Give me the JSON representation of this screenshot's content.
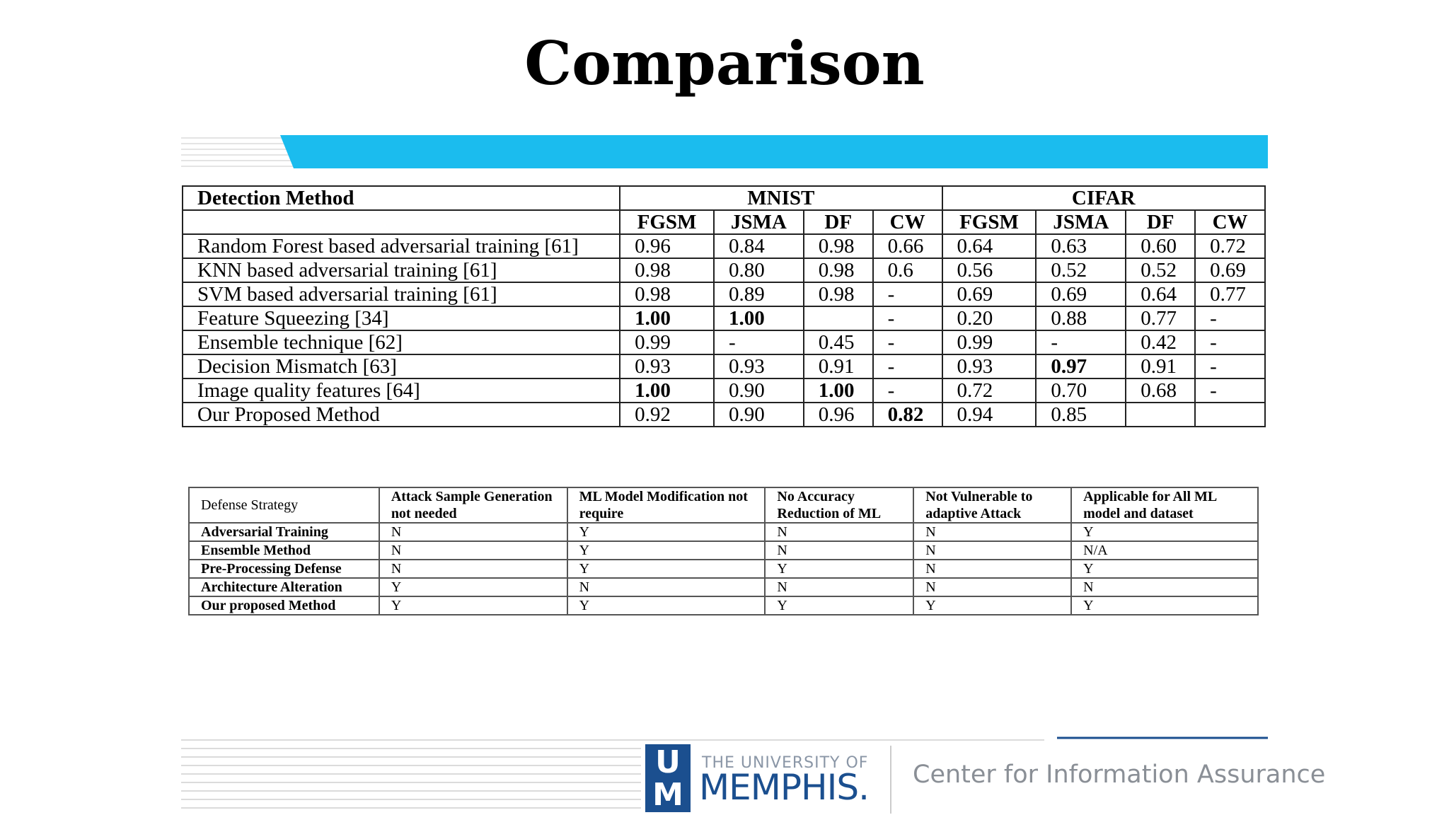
{
  "title": "Comparison",
  "table1": {
    "header": {
      "method": "Detection Method",
      "groups": [
        "MNIST",
        "CIFAR"
      ],
      "columns": [
        "FGSM",
        "JSMA",
        "DF",
        "CW",
        "FGSM",
        "JSMA",
        "DF",
        "CW"
      ]
    },
    "rows": [
      [
        "Random Forest based adversarial training [61]",
        "0.96",
        "0.84",
        "0.98",
        "0.66",
        "0.64",
        "0.63",
        "0.60",
        "0.72"
      ],
      [
        "KNN based adversarial training [61]",
        "0.98",
        "0.80",
        "0.98",
        "0.6",
        "0.56",
        "0.52",
        "0.52",
        "0.69"
      ],
      [
        "SVM based adversarial training [61]",
        "0.98",
        "0.89",
        "0.98",
        "-",
        "0.69",
        "0.69",
        "0.64",
        "0.77"
      ],
      [
        "Feature Squeezing [34]",
        "1.00",
        "1.00",
        null,
        "-",
        "0.20",
        "0.88",
        "0.77",
        "-"
      ],
      [
        "Ensemble technique [62]",
        "0.99",
        "-",
        "0.45",
        "-",
        "0.99",
        "-",
        "0.42",
        "-"
      ],
      [
        "Decision Mismatch [63]",
        "0.93",
        "0.93",
        "0.91",
        "-",
        "0.93",
        "0.97",
        "0.91",
        "-"
      ],
      [
        "Image quality features [64]",
        "1.00",
        "0.90",
        "1.00",
        "-",
        "0.72",
        "0.70",
        "0.68",
        "-"
      ],
      [
        "Our Proposed Method",
        "0.92",
        "0.90",
        "0.96",
        "0.82",
        "0.94",
        "0.85",
        null,
        null
      ]
    ]
  },
  "table2": {
    "header": [
      "Defense Strategy",
      "Attack Sample Generation not needed",
      "ML Model Modification not require",
      "No Accuracy Reduction of ML",
      "Not Vulnerable to adaptive Attack",
      "Applicable for All ML model and dataset"
    ],
    "rows": [
      [
        "Adversarial Training",
        "N",
        "Y",
        "N",
        "N",
        "Y"
      ],
      [
        "Ensemble Method",
        "N",
        "Y",
        "N",
        "N",
        "N/A"
      ],
      [
        "Pre-Processing Defense",
        "N",
        "Y",
        "Y",
        "N",
        "Y"
      ],
      [
        "Architecture Alteration",
        "Y",
        "N",
        "N",
        "N",
        "N"
      ],
      [
        "Our proposed Method",
        "Y",
        "Y",
        "Y",
        "Y",
        "Y"
      ]
    ]
  },
  "footer": {
    "logo": [
      "U",
      "M"
    ],
    "university_prefix": "THE UNIVERSITY OF",
    "university": "MEMPHIS.",
    "center": "Center for Information Assurance"
  }
}
